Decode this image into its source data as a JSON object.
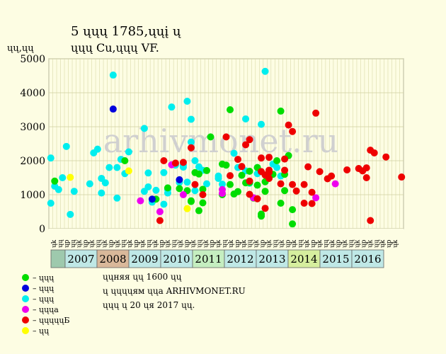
{
  "chart_data": {
    "type": "scatter",
    "title_line1": "5 ųųų 1785,ųųį ų",
    "title_line2": "ųųų Cu,ųųų VF.",
    "ylabel": "ųų,ųų",
    "ylim": [
      0,
      5000
    ],
    "yticks": [
      0,
      1000,
      2000,
      3000,
      4000,
      5000
    ],
    "grid": true,
    "watermark": "arhivmonet.ru",
    "columns": [
      "ųk",
      "ųų",
      "ųp",
      "ųų",
      "ųk",
      "ųp",
      "ųk",
      "ųų",
      "ųk",
      "ųp",
      "ųk",
      "ųų",
      "ųk",
      "ųp",
      "ųk",
      "ųų",
      "ųk",
      "ųp",
      "ųk",
      "ųų",
      "ųk",
      "ųp",
      "ųk",
      "ųų",
      "ųk",
      "ųp",
      "ųk",
      "ųų",
      "ųk",
      "ųp",
      "ųk",
      "ųų",
      "ųk",
      "ųp",
      "ųk",
      "ųų",
      "ųk",
      "ųp",
      "ųk",
      "ųų",
      "ųk",
      "ųp",
      "ųk",
      "ųų",
      "ųk",
      "ųp",
      "ųk",
      "ųų",
      "ųk",
      "ųp",
      "ųk",
      "ųų",
      "ųk",
      "ųp",
      "ųk"
    ],
    "years": [
      {
        "label": "",
        "color": "#9ec9ad"
      },
      {
        "label": "2007",
        "color": "#bfe8e6"
      },
      {
        "label": "2008",
        "color": "#d9b89a"
      },
      {
        "label": "2009",
        "color": "#bfe8e6"
      },
      {
        "label": "2010",
        "color": "#bfe8e6"
      },
      {
        "label": "2011",
        "color": "#c5eec0"
      },
      {
        "label": "2012",
        "color": "#bfe8e6"
      },
      {
        "label": "2013",
        "color": "#bfe8e6"
      },
      {
        "label": "2014",
        "color": "#d6ee9e"
      },
      {
        "label": "2015",
        "color": "#bfe8e6"
      },
      {
        "label": "2016",
        "color": "#bfe8e6"
      }
    ],
    "legend": [
      {
        "label": "– ųųų",
        "color": "#00dd00"
      },
      {
        "label": "– ųųų",
        "color": "#0000dd"
      },
      {
        "label": "– ųųų",
        "color": "#00eeee"
      },
      {
        "label": "– ųųųa",
        "color": "#ee00ee"
      },
      {
        "label": "– ųųųųųБ",
        "color": "#ee0000"
      },
      {
        "label": "– ųų",
        "color": "#ffff00"
      }
    ],
    "notes": [
      "ųųняя ųų 1600 ųų",
      "ų ųųųųям ųųa ARHIVMONET.RU",
      "ųųų ų 20 ųя 2017 ųų."
    ],
    "series": [
      {
        "color": "#00eeee",
        "points": [
          [
            0,
            750
          ],
          [
            0,
            2080
          ],
          [
            1,
            1250
          ],
          [
            2,
            1150
          ],
          [
            3,
            1500
          ],
          [
            4,
            2420
          ],
          [
            5,
            420
          ],
          [
            6,
            1100
          ],
          [
            10,
            1320
          ],
          [
            11,
            2230
          ],
          [
            12,
            2340
          ],
          [
            13,
            1480
          ],
          [
            13,
            1050
          ],
          [
            14,
            1350
          ],
          [
            15,
            1800
          ],
          [
            16,
            4520
          ],
          [
            17,
            1800
          ],
          [
            17,
            900
          ],
          [
            18,
            2040
          ],
          [
            19,
            1620
          ],
          [
            20,
            2260
          ],
          [
            24,
            2950
          ],
          [
            24,
            1100
          ],
          [
            25,
            1640
          ],
          [
            25,
            1230
          ],
          [
            26,
            780
          ],
          [
            27,
            1130
          ],
          [
            29,
            1650
          ],
          [
            29,
            720
          ],
          [
            30,
            1050
          ],
          [
            30,
            1150
          ],
          [
            31,
            3580
          ],
          [
            32,
            1870
          ],
          [
            33,
            1360
          ],
          [
            34,
            1870
          ],
          [
            34,
            1810
          ],
          [
            35,
            3750
          ],
          [
            35,
            1370
          ],
          [
            36,
            3220
          ],
          [
            36,
            2550
          ],
          [
            37,
            2000
          ],
          [
            37,
            1120
          ],
          [
            38,
            1820
          ],
          [
            39,
            1720
          ],
          [
            40,
            1320
          ],
          [
            43,
            1550
          ],
          [
            43,
            1480
          ],
          [
            44,
            1310
          ],
          [
            47,
            2220
          ],
          [
            48,
            1800
          ],
          [
            50,
            3230
          ],
          [
            50,
            1700
          ],
          [
            51,
            1340
          ],
          [
            53,
            1800
          ],
          [
            53,
            1620
          ],
          [
            54,
            3070
          ],
          [
            55,
            4630
          ],
          [
            56,
            1530
          ],
          [
            57,
            1900
          ],
          [
            58,
            1800
          ],
          [
            59,
            1550
          ]
        ]
      },
      {
        "color": "#00dd00",
        "points": [
          [
            1,
            1400
          ],
          [
            19,
            2000
          ],
          [
            27,
            870
          ],
          [
            30,
            1200
          ],
          [
            33,
            1180
          ],
          [
            35,
            1120
          ],
          [
            36,
            800
          ],
          [
            36,
            820
          ],
          [
            37,
            1650
          ],
          [
            38,
            1610
          ],
          [
            38,
            530
          ],
          [
            39,
            760
          ],
          [
            39,
            1160
          ],
          [
            40,
            1710
          ],
          [
            41,
            2700
          ],
          [
            44,
            1000
          ],
          [
            44,
            1900
          ],
          [
            45,
            1870
          ],
          [
            46,
            3500
          ],
          [
            46,
            1300
          ],
          [
            47,
            1020
          ],
          [
            48,
            1090
          ],
          [
            49,
            1570
          ],
          [
            50,
            1350
          ],
          [
            51,
            1360
          ],
          [
            51,
            1690
          ],
          [
            52,
            900
          ],
          [
            53,
            1800
          ],
          [
            53,
            1280
          ],
          [
            54,
            430
          ],
          [
            54,
            370
          ],
          [
            55,
            1380
          ],
          [
            55,
            1100
          ],
          [
            57,
            1600
          ],
          [
            58,
            2000
          ],
          [
            59,
            3460
          ],
          [
            59,
            750
          ],
          [
            60,
            1600
          ],
          [
            60,
            1120
          ],
          [
            61,
            2150
          ],
          [
            62,
            560
          ],
          [
            62,
            140
          ]
        ]
      },
      {
        "color": "#0000dd",
        "points": [
          [
            16,
            3520
          ],
          [
            26,
            870
          ],
          [
            33,
            1440
          ]
        ]
      },
      {
        "color": "#ee00ee",
        "points": [
          [
            23,
            820
          ],
          [
            28,
            500
          ],
          [
            31,
            1880
          ],
          [
            34,
            1000
          ],
          [
            44,
            1040
          ],
          [
            44,
            1150
          ],
          [
            52,
            910
          ],
          [
            68,
            910
          ],
          [
            73,
            1320
          ]
        ]
      },
      {
        "color": "#ee0000",
        "points": [
          [
            28,
            240
          ],
          [
            29,
            2000
          ],
          [
            32,
            1930
          ],
          [
            34,
            1950
          ],
          [
            36,
            2380
          ],
          [
            37,
            1300
          ],
          [
            39,
            1000
          ],
          [
            45,
            2700
          ],
          [
            46,
            1560
          ],
          [
            48,
            2040
          ],
          [
            49,
            1830
          ],
          [
            50,
            2470
          ],
          [
            51,
            2620
          ],
          [
            51,
            1010
          ],
          [
            51,
            1400
          ],
          [
            53,
            880
          ],
          [
            54,
            2080
          ],
          [
            54,
            1680
          ],
          [
            55,
            600
          ],
          [
            55,
            1580
          ],
          [
            56,
            2100
          ],
          [
            56,
            1720
          ],
          [
            56,
            1660
          ],
          [
            56,
            1480
          ],
          [
            59,
            1320
          ],
          [
            60,
            2050
          ],
          [
            60,
            1720
          ],
          [
            61,
            3050
          ],
          [
            62,
            1300
          ],
          [
            62,
            2860
          ],
          [
            63,
            1110
          ],
          [
            65,
            750
          ],
          [
            65,
            1300
          ],
          [
            66,
            1820
          ],
          [
            67,
            740
          ],
          [
            67,
            1070
          ],
          [
            68,
            3400
          ],
          [
            69,
            1680
          ],
          [
            71,
            1470
          ],
          [
            72,
            1550
          ],
          [
            76,
            1730
          ],
          [
            79,
            1770
          ],
          [
            80,
            1700
          ],
          [
            81,
            1790
          ],
          [
            81,
            1500
          ],
          [
            82,
            2310
          ],
          [
            82,
            240
          ],
          [
            83,
            2230
          ],
          [
            86,
            2110
          ],
          [
            90,
            1520
          ]
        ]
      },
      {
        "color": "#ffff00",
        "points": [
          [
            5,
            1510
          ],
          [
            20,
            1700
          ],
          [
            35,
            590
          ]
        ]
      }
    ]
  }
}
